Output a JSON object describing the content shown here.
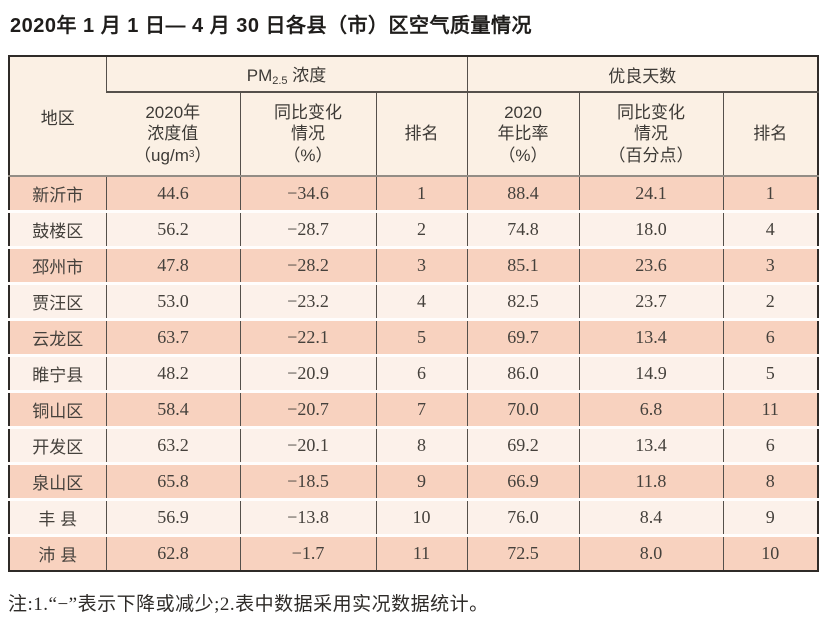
{
  "page": {
    "title": "2020年 1 月 1 日— 4 月 30 日各县（市）区空气质量情况",
    "note": "注:1.“−”表示下降或减少;2.表中数据采用实况数据统计。"
  },
  "colors": {
    "band_dark": "#f8d2bf",
    "band_light": "#fcf1ea",
    "header_bg": "#fbf0e4",
    "outer_border": "#2f2b28",
    "inner_border": "#55504b",
    "text": "#3d3a36"
  },
  "table": {
    "corner_header": "地区",
    "pm_group": {
      "prefix": "PM",
      "sub": "2.5",
      "suffix": " 浓度"
    },
    "good_group": "优良天数",
    "subheaders": {
      "pm_value_lines": "2020年\n浓度值",
      "pm_value_unit_prefix": "（ug/m",
      "pm_value_unit_sup": "3",
      "pm_value_unit_suffix": "）",
      "pm_change": "同比变化\n情况\n（%）",
      "pm_rank": "排名",
      "good_rate": "2020\n年比率\n（%）",
      "good_change": "同比变化\n情况\n（百分点）",
      "good_rank": "排名"
    },
    "rows": [
      {
        "region": "新沂市",
        "pm_value": "44.6",
        "pm_change": "−34.6",
        "pm_rank": "1",
        "good_rate": "88.4",
        "good_change": "24.1",
        "good_rank": "1"
      },
      {
        "region": "鼓楼区",
        "pm_value": "56.2",
        "pm_change": "−28.7",
        "pm_rank": "2",
        "good_rate": "74.8",
        "good_change": "18.0",
        "good_rank": "4"
      },
      {
        "region": "邳州市",
        "pm_value": "47.8",
        "pm_change": "−28.2",
        "pm_rank": "3",
        "good_rate": "85.1",
        "good_change": "23.6",
        "good_rank": "3"
      },
      {
        "region": "贾汪区",
        "pm_value": "53.0",
        "pm_change": "−23.2",
        "pm_rank": "4",
        "good_rate": "82.5",
        "good_change": "23.7",
        "good_rank": "2"
      },
      {
        "region": "云龙区",
        "pm_value": "63.7",
        "pm_change": "−22.1",
        "pm_rank": "5",
        "good_rate": "69.7",
        "good_change": "13.4",
        "good_rank": "6"
      },
      {
        "region": "睢宁县",
        "pm_value": "48.2",
        "pm_change": "−20.9",
        "pm_rank": "6",
        "good_rate": "86.0",
        "good_change": "14.9",
        "good_rank": "5"
      },
      {
        "region": "铜山区",
        "pm_value": "58.4",
        "pm_change": "−20.7",
        "pm_rank": "7",
        "good_rate": "70.0",
        "good_change": "6.8",
        "good_rank": "11"
      },
      {
        "region": "开发区",
        "pm_value": "63.2",
        "pm_change": "−20.1",
        "pm_rank": "8",
        "good_rate": "69.2",
        "good_change": "13.4",
        "good_rank": "6"
      },
      {
        "region": "泉山区",
        "pm_value": "65.8",
        "pm_change": "−18.5",
        "pm_rank": "9",
        "good_rate": "66.9",
        "good_change": "11.8",
        "good_rank": "8"
      },
      {
        "region": "丰 县",
        "pm_value": "56.9",
        "pm_change": "−13.8",
        "pm_rank": "10",
        "good_rate": "76.0",
        "good_change": "8.4",
        "good_rank": "9"
      },
      {
        "region": "沛 县",
        "pm_value": "62.8",
        "pm_change": "−1.7",
        "pm_rank": "11",
        "good_rate": "72.5",
        "good_change": "8.0",
        "good_rank": "10"
      }
    ]
  }
}
